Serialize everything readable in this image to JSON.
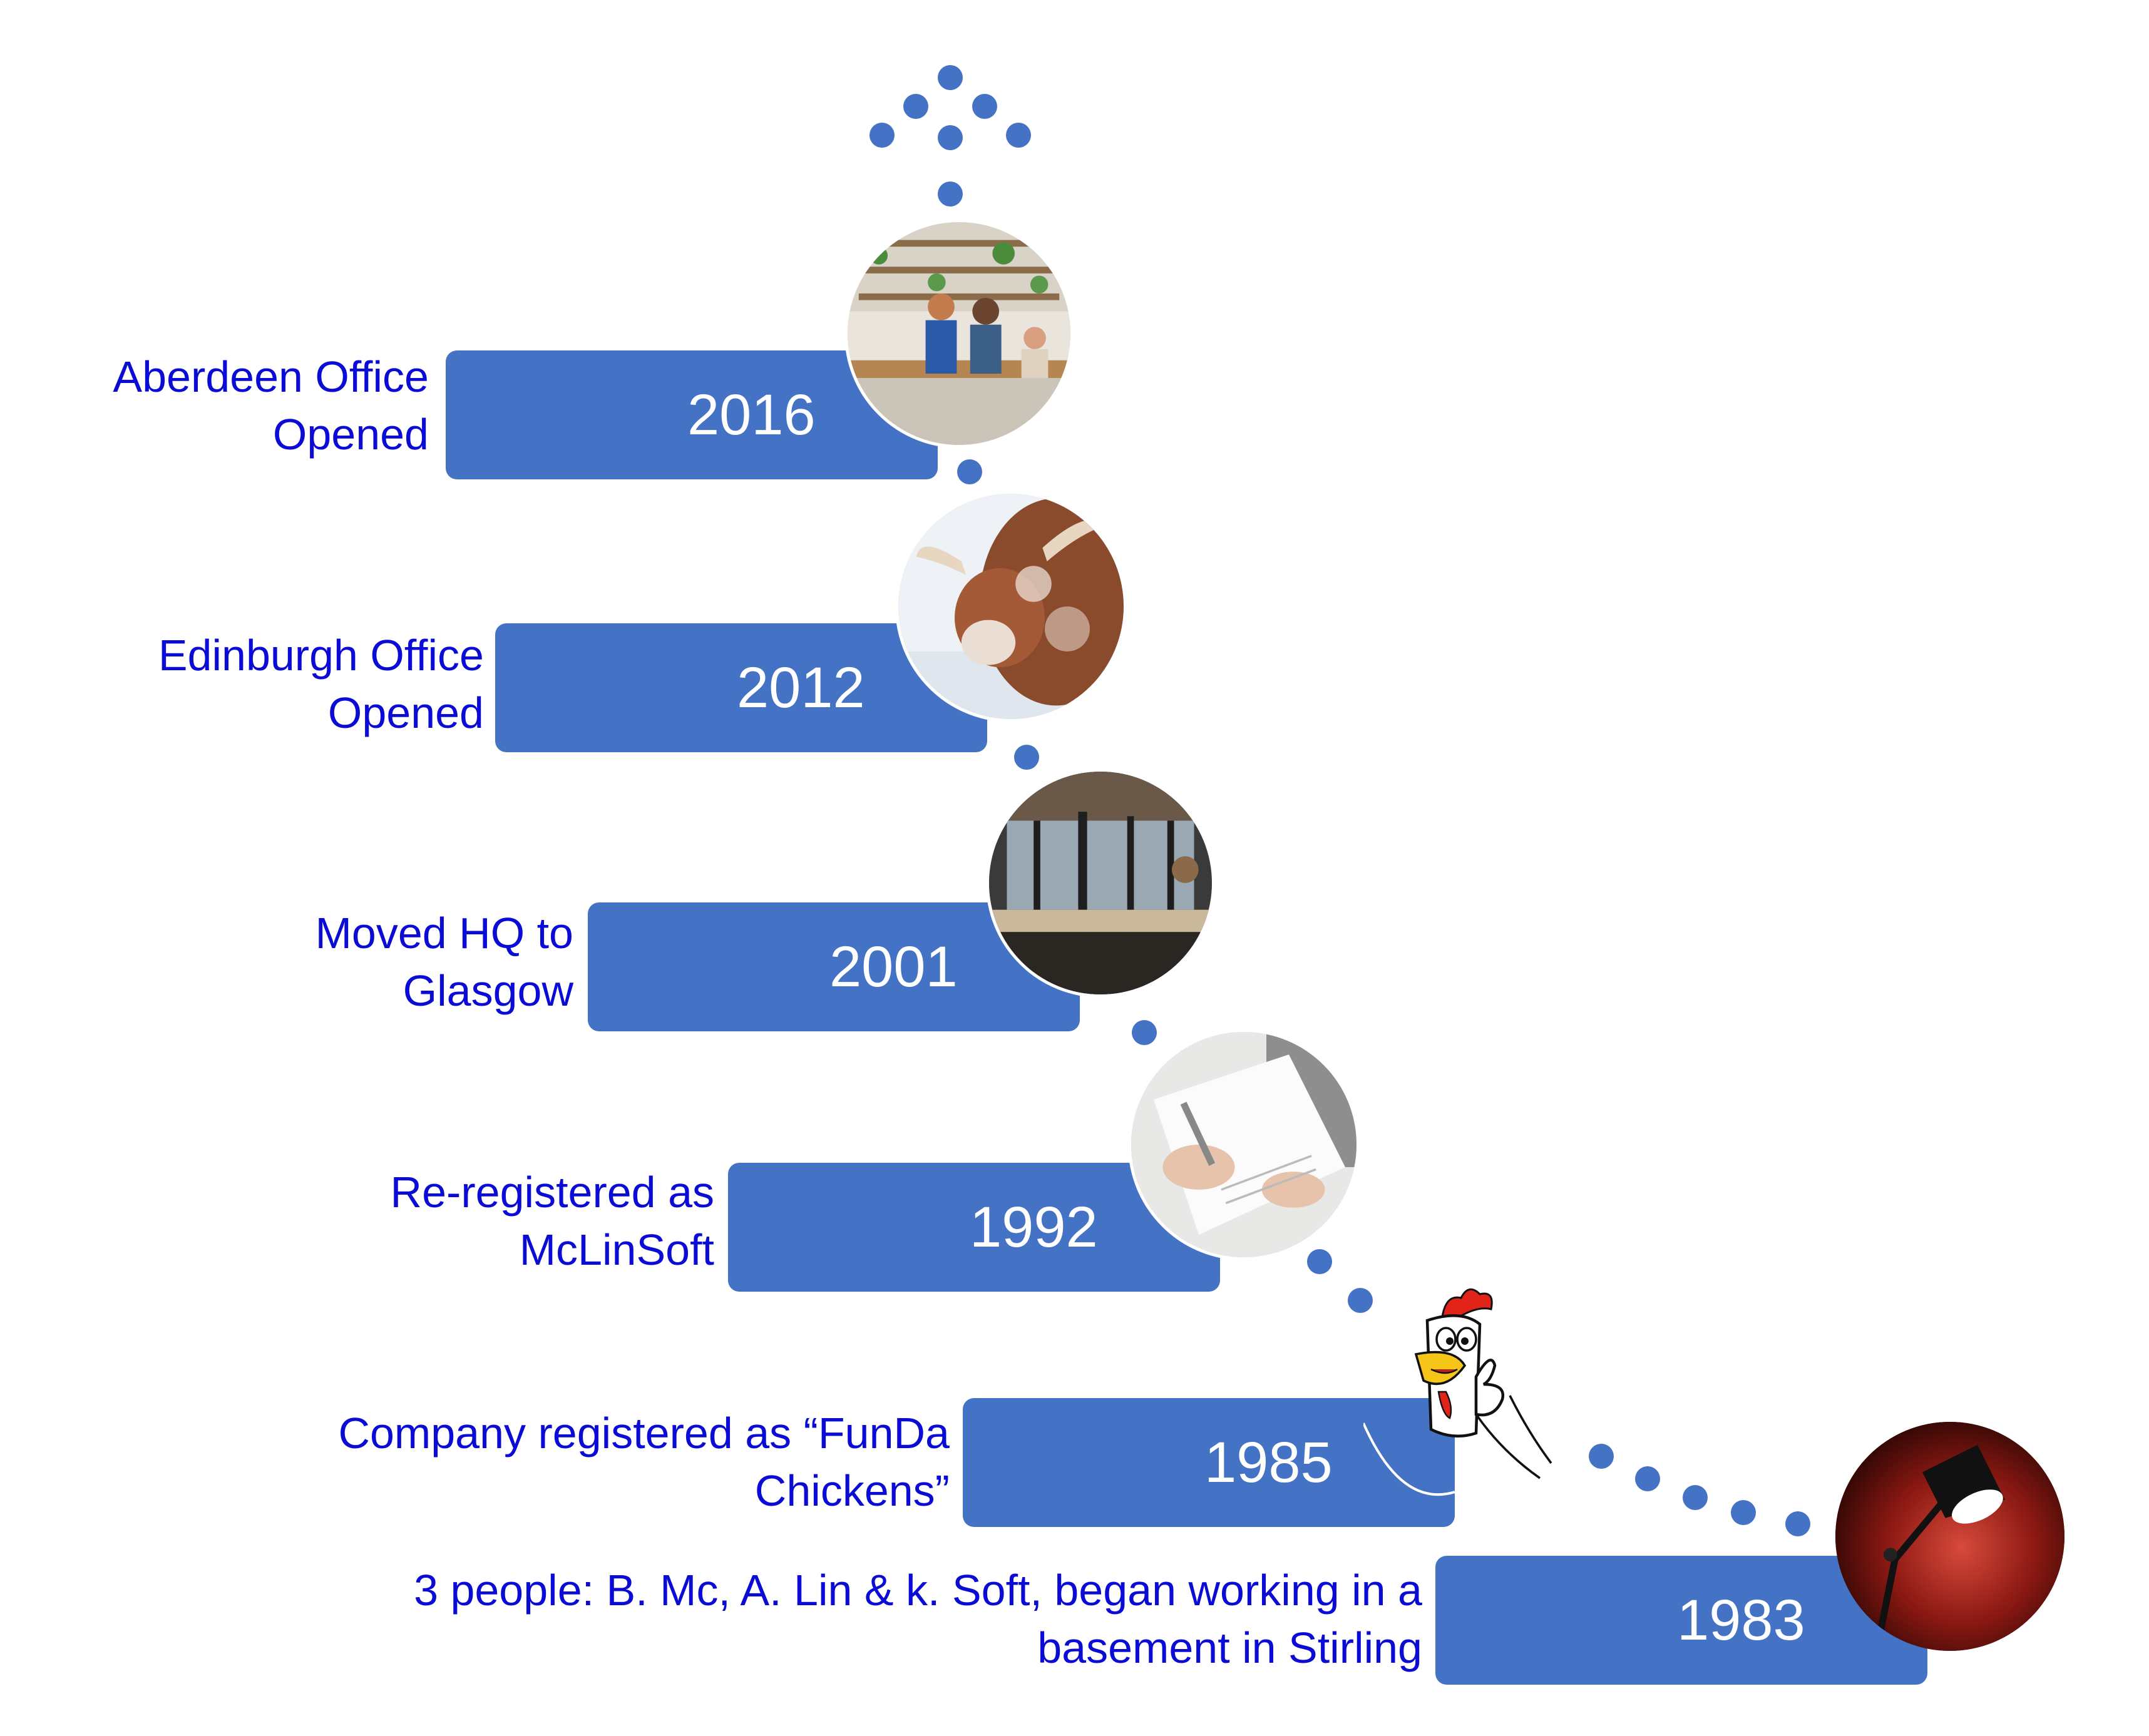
{
  "colors": {
    "bar": "#4472c4",
    "dot": "#4472c4",
    "label_text": "#0b0bd6",
    "year_text": "#ffffff"
  },
  "milestones": [
    {
      "year": "2016",
      "label": "Aberdeen Office Opened",
      "label_line1": "Aberdeen Office",
      "label_line2": "Opened",
      "photo_icon": "team-meeting-photo"
    },
    {
      "year": "2012",
      "label": "Edinburgh Office Opened",
      "label_line1": "Edinburgh Office",
      "label_line2": "Opened",
      "photo_icon": "highland-cow-photo"
    },
    {
      "year": "2001",
      "label": "Moved HQ to Glasgow",
      "label_line1": "Moved HQ to",
      "label_line2": "Glasgow",
      "photo_icon": "open-office-photo"
    },
    {
      "year": "1992",
      "label": "Re-registered as McLinSoft",
      "label_line1": "Re-registered as",
      "label_line2": "McLinSoft",
      "photo_icon": "signing-document-photo"
    },
    {
      "year": "1985",
      "label": "Company registered as “FunDa Chickens”",
      "label_line1": "Company registered as “FunDa",
      "label_line2": "Chickens”",
      "photo_icon": "chicken-mascot-cartoon"
    },
    {
      "year": "1983",
      "label": "3 people: B. Mc, A. Lin & k. Soft, began working in a basement in Stirling",
      "label_line1": "3 people: B. Mc, A. Lin & k. Soft, began working in a",
      "label_line2": "basement in Stirling",
      "photo_icon": "desk-lamp-photo"
    }
  ],
  "arrow_icon": "dotted-up-arrow-icon"
}
